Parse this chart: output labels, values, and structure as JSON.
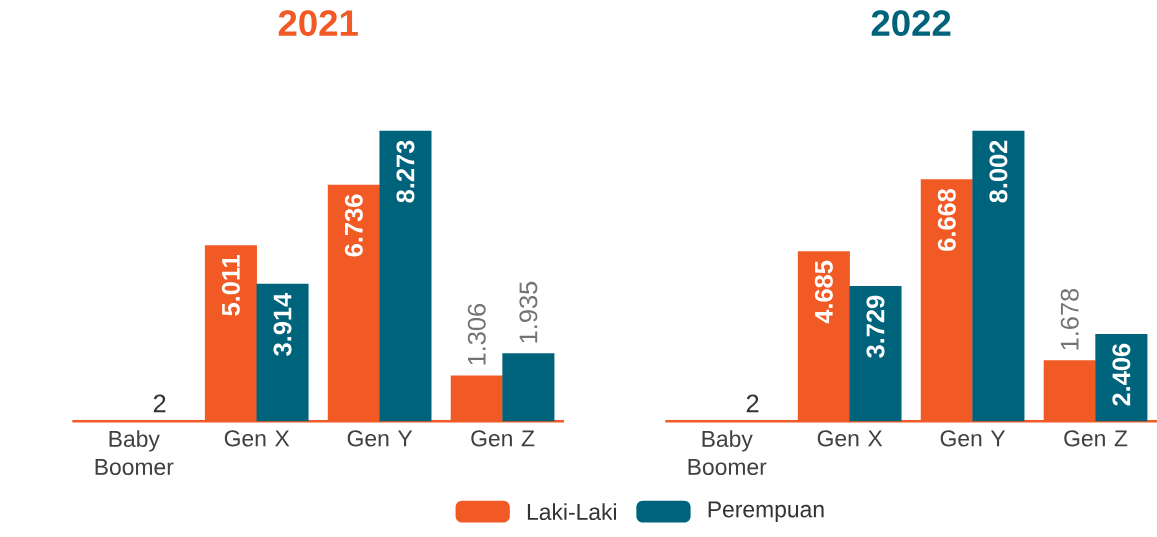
{
  "chart_data": [
    {
      "type": "bar",
      "title": "2021",
      "categories": [
        "Baby Boomer",
        "Gen X",
        "Gen Y",
        "Gen Z"
      ],
      "legend": "bottom",
      "series": [
        {
          "name": "Laki-Laki",
          "color": "#f15a24",
          "values": [
            null,
            5011,
            6736,
            1306
          ],
          "value_labels": [
            null,
            "5.011",
            "6.736",
            "1.306"
          ]
        },
        {
          "name": "Perempuan",
          "color": "#00637c",
          "values": [
            2,
            3914,
            8273,
            1935
          ],
          "value_labels": [
            "2",
            "3.914",
            "8.273",
            "1.935"
          ]
        }
      ]
    },
    {
      "type": "bar",
      "title": "2022",
      "categories": [
        "Baby Boomer",
        "Gen X",
        "Gen Y",
        "Gen Z"
      ],
      "series": [
        {
          "color": "#f15a24",
          "values": [
            null,
            4685,
            6668,
            1678
          ],
          "value_labels": [
            null,
            "4.685",
            "6.668",
            "1.678"
          ]
        },
        {
          "color": "#00637c",
          "values": [
            2,
            3729,
            8002,
            2406
          ],
          "value_labels": [
            "2",
            "3.729",
            "8.002",
            "2.406"
          ]
        }
      ]
    }
  ]
}
